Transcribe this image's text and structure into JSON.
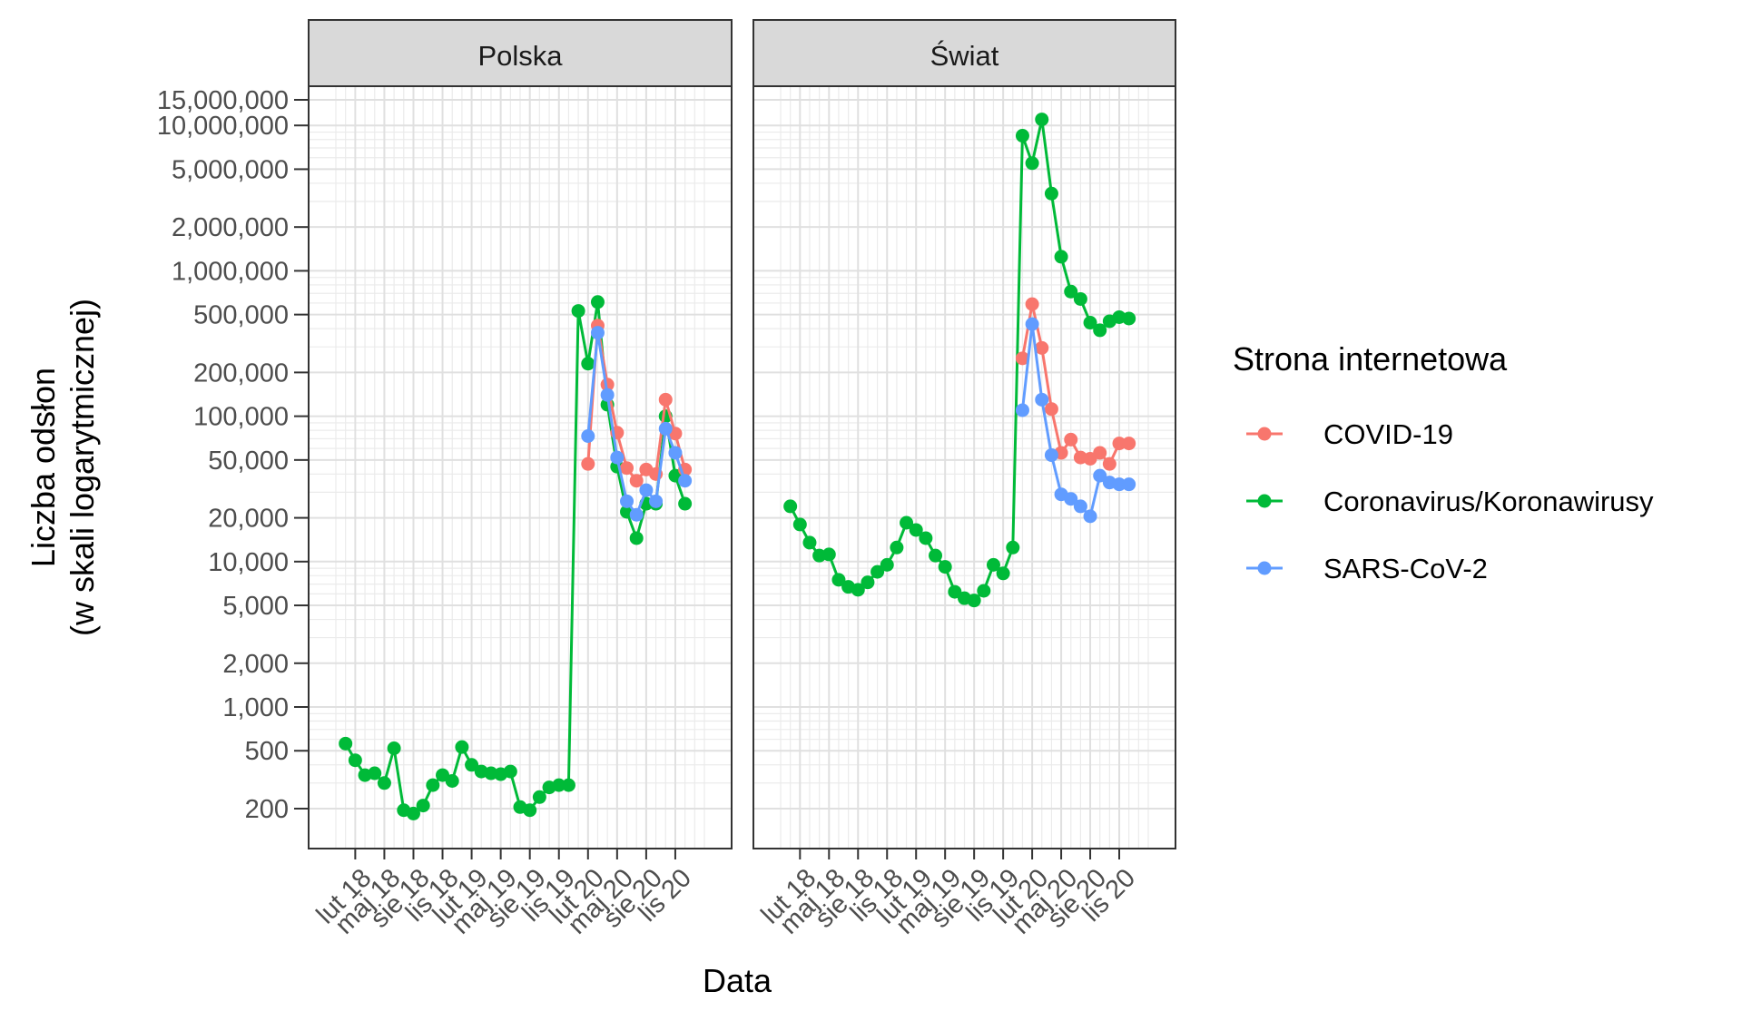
{
  "chart_data": {
    "type": "line",
    "xlabel": "Data",
    "ylabel_line1": "Liczba odsłon",
    "ylabel_line2": "(w skali logarytmicznej)",
    "y_scale": "log",
    "ylim": [
      150,
      15000000
    ],
    "y_ticks": [
      {
        "value": 200,
        "label": "200"
      },
      {
        "value": 500,
        "label": "500"
      },
      {
        "value": 1000,
        "label": "1,000"
      },
      {
        "value": 2000,
        "label": "2,000"
      },
      {
        "value": 5000,
        "label": "5,000"
      },
      {
        "value": 10000,
        "label": "10,000"
      },
      {
        "value": 20000,
        "label": "20,000"
      },
      {
        "value": 50000,
        "label": "50,000"
      },
      {
        "value": 100000,
        "label": "100,000"
      },
      {
        "value": 200000,
        "label": "200,000"
      },
      {
        "value": 500000,
        "label": "500,000"
      },
      {
        "value": 1000000,
        "label": "1,000,000"
      },
      {
        "value": 2000000,
        "label": "2,000,000"
      },
      {
        "value": 5000000,
        "label": "5,000,000"
      },
      {
        "value": 10000000,
        "label": "10,000,000"
      },
      {
        "value": 15000000,
        "label": "15,000,000"
      }
    ],
    "x_ticks": [
      {
        "value": "2018-02",
        "label": "lut 18"
      },
      {
        "value": "2018-05",
        "label": "maj 18"
      },
      {
        "value": "2018-08",
        "label": "sie 18"
      },
      {
        "value": "2018-11",
        "label": "lis 18"
      },
      {
        "value": "2019-02",
        "label": "lut 19"
      },
      {
        "value": "2019-05",
        "label": "maj 19"
      },
      {
        "value": "2019-08",
        "label": "sie 19"
      },
      {
        "value": "2019-11",
        "label": "lis 19"
      },
      {
        "value": "2020-02",
        "label": "lut 20"
      },
      {
        "value": "2020-05",
        "label": "maj 20"
      },
      {
        "value": "2020-08",
        "label": "sie 20"
      },
      {
        "value": "2020-11",
        "label": "lis 20"
      }
    ],
    "xlim": [
      "2017-12",
      "2021-02"
    ],
    "grid": true,
    "legend": {
      "title": "Strona internetowa",
      "placement": "right",
      "entries": [
        {
          "name": "COVID-19",
          "color": "#F8766D"
        },
        {
          "name": "Coronavirus/Koronawirusy",
          "color": "#00BA38"
        },
        {
          "name": "SARS-CoV-2",
          "color": "#619CFF"
        }
      ]
    },
    "panels": [
      {
        "strip_label": "Polska",
        "series": [
          {
            "name": "Coronavirus/Koronawirusy",
            "color": "#00BA38",
            "x": [
              "2018-01",
              "2018-02",
              "2018-03",
              "2018-04",
              "2018-05",
              "2018-06",
              "2018-07",
              "2018-08",
              "2018-09",
              "2018-10",
              "2018-11",
              "2018-12",
              "2019-01",
              "2019-02",
              "2019-03",
              "2019-04",
              "2019-05",
              "2019-06",
              "2019-07",
              "2019-08",
              "2019-09",
              "2019-10",
              "2019-11",
              "2019-12",
              "2020-01",
              "2020-02",
              "2020-03",
              "2020-04",
              "2020-05",
              "2020-06",
              "2020-07",
              "2020-08",
              "2020-09",
              "2020-10",
              "2020-11",
              "2020-12"
            ],
            "y": [
              560,
              430,
              340,
              350,
              300,
              520,
              195,
              185,
              210,
              290,
              340,
              310,
              530,
              400,
              360,
              350,
              345,
              360,
              205,
              195,
              240,
              280,
              290,
              290,
              530000,
              230000,
              610000,
              120000,
              45000,
              22000,
              14500,
              25000,
              25000,
              100000,
              39000,
              25000
            ]
          },
          {
            "name": "COVID-19",
            "color": "#F8766D",
            "x": [
              "2020-02",
              "2020-03",
              "2020-04",
              "2020-05",
              "2020-06",
              "2020-07",
              "2020-08",
              "2020-09",
              "2020-10",
              "2020-11",
              "2020-12"
            ],
            "y": [
              47000,
              420000,
              165000,
              77000,
              44000,
              36000,
              43000,
              40000,
              130000,
              76000,
              43000
            ]
          },
          {
            "name": "SARS-CoV-2",
            "color": "#619CFF",
            "x": [
              "2020-02",
              "2020-03",
              "2020-04",
              "2020-05",
              "2020-06",
              "2020-07",
              "2020-08",
              "2020-09",
              "2020-10",
              "2020-11",
              "2020-12"
            ],
            "y": [
              73000,
              375000,
              140000,
              52000,
              26000,
              21000,
              31000,
              26000,
              82000,
              56000,
              36000
            ]
          }
        ]
      },
      {
        "strip_label": "Świat",
        "series": [
          {
            "name": "Coronavirus/Koronawirusy",
            "color": "#00BA38",
            "x": [
              "2018-01",
              "2018-02",
              "2018-03",
              "2018-04",
              "2018-05",
              "2018-06",
              "2018-07",
              "2018-08",
              "2018-09",
              "2018-10",
              "2018-11",
              "2018-12",
              "2019-01",
              "2019-02",
              "2019-03",
              "2019-04",
              "2019-05",
              "2019-06",
              "2019-07",
              "2019-08",
              "2019-09",
              "2019-10",
              "2019-11",
              "2019-12",
              "2020-01",
              "2020-02",
              "2020-03",
              "2020-04",
              "2020-05",
              "2020-06",
              "2020-07",
              "2020-08",
              "2020-09",
              "2020-10",
              "2020-11",
              "2020-12"
            ],
            "y": [
              24000,
              18000,
              13500,
              11000,
              11200,
              7500,
              6700,
              6400,
              7200,
              8500,
              9500,
              12500,
              18500,
              16500,
              14500,
              11000,
              9200,
              6200,
              5600,
              5400,
              6300,
              9500,
              8300,
              12500,
              8500000,
              5500000,
              11000000,
              3400000,
              1250000,
              720000,
              640000,
              440000,
              390000,
              450000,
              480000,
              470000
            ]
          },
          {
            "name": "COVID-19",
            "color": "#F8766D",
            "x": [
              "2020-01",
              "2020-02",
              "2020-03",
              "2020-04",
              "2020-05",
              "2020-06",
              "2020-07",
              "2020-08",
              "2020-09",
              "2020-10",
              "2020-11",
              "2020-12"
            ],
            "y": [
              250000,
              590000,
              295000,
              112000,
              56000,
              69000,
              52000,
              51000,
              56000,
              47000,
              65000,
              65000
            ]
          },
          {
            "name": "SARS-CoV-2",
            "color": "#619CFF",
            "x": [
              "2020-01",
              "2020-02",
              "2020-03",
              "2020-04",
              "2020-05",
              "2020-06",
              "2020-07",
              "2020-08",
              "2020-09",
              "2020-10",
              "2020-11",
              "2020-12"
            ],
            "y": [
              110000,
              430000,
              130000,
              54000,
              29000,
              27000,
              24000,
              20500,
              39000,
              35000,
              34000,
              34000
            ]
          }
        ]
      }
    ]
  }
}
